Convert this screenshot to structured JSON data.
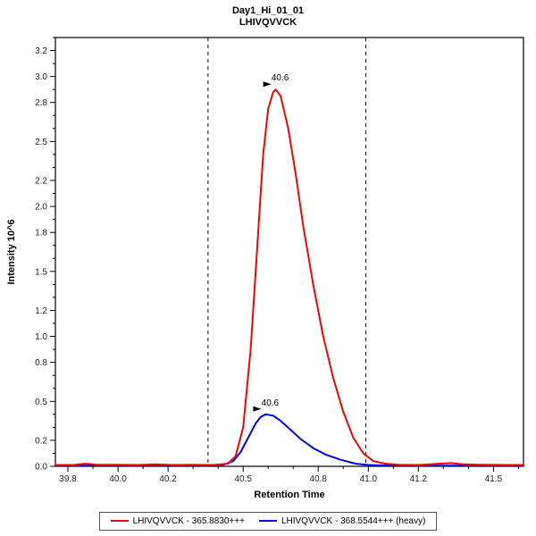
{
  "title": "Day1_Hi_01_01",
  "subtitle": "LHIVQVVCK",
  "chart_data": {
    "type": "line",
    "title": "Day1_Hi_01_01",
    "subtitle": "LHIVQVVCK",
    "xlabel": "Retention Time",
    "ylabel": "Intensity 10^6",
    "xlim": [
      39.75,
      41.62
    ],
    "ylim": [
      0,
      3.3
    ],
    "x_ticks": [
      39.8,
      40.0,
      40.2,
      40.5,
      40.8,
      41.0,
      41.2,
      41.5
    ],
    "y_ticks": [
      0.0,
      0.2,
      0.5,
      0.8,
      1.0,
      1.2,
      1.5,
      1.8,
      2.0,
      2.2,
      2.5,
      2.8,
      3.0,
      3.2
    ],
    "peak_boundaries": [
      40.36,
      40.99
    ],
    "legend_position": "bottom",
    "grid": false,
    "series": [
      {
        "name": "LHIVQVVCK - 365.8830+++",
        "color": "#ff0000",
        "peak_label": "40.6",
        "peak_x": 40.63,
        "peak_y": 2.9,
        "points": [
          [
            39.75,
            0.01
          ],
          [
            39.82,
            0.01
          ],
          [
            39.87,
            0.02
          ],
          [
            39.92,
            0.012
          ],
          [
            40.0,
            0.012
          ],
          [
            40.08,
            0.01
          ],
          [
            40.15,
            0.015
          ],
          [
            40.22,
            0.01
          ],
          [
            40.3,
            0.012
          ],
          [
            40.38,
            0.01
          ],
          [
            40.44,
            0.02
          ],
          [
            40.47,
            0.08
          ],
          [
            40.5,
            0.3
          ],
          [
            40.53,
            0.9
          ],
          [
            40.56,
            1.8
          ],
          [
            40.58,
            2.4
          ],
          [
            40.6,
            2.75
          ],
          [
            40.62,
            2.88
          ],
          [
            40.63,
            2.9
          ],
          [
            40.65,
            2.85
          ],
          [
            40.68,
            2.6
          ],
          [
            40.71,
            2.25
          ],
          [
            40.74,
            1.85
          ],
          [
            40.78,
            1.4
          ],
          [
            40.82,
            1.0
          ],
          [
            40.86,
            0.68
          ],
          [
            40.9,
            0.42
          ],
          [
            40.94,
            0.22
          ],
          [
            40.98,
            0.1
          ],
          [
            41.02,
            0.04
          ],
          [
            41.07,
            0.02
          ],
          [
            41.12,
            0.012
          ],
          [
            41.2,
            0.01
          ],
          [
            41.28,
            0.02
          ],
          [
            41.33,
            0.025
          ],
          [
            41.38,
            0.015
          ],
          [
            41.45,
            0.012
          ],
          [
            41.55,
            0.01
          ],
          [
            41.62,
            0.01
          ]
        ]
      },
      {
        "name": "LHIVQVVCK - 368.5544+++ (heavy)",
        "color": "#0000ff",
        "peak_label": "40.6",
        "peak_x": 40.59,
        "peak_y": 0.4,
        "points": [
          [
            39.75,
            0.005
          ],
          [
            40.0,
            0.005
          ],
          [
            40.2,
            0.005
          ],
          [
            40.35,
            0.005
          ],
          [
            40.42,
            0.01
          ],
          [
            40.46,
            0.04
          ],
          [
            40.49,
            0.11
          ],
          [
            40.52,
            0.22
          ],
          [
            40.55,
            0.33
          ],
          [
            40.57,
            0.38
          ],
          [
            40.59,
            0.4
          ],
          [
            40.62,
            0.39
          ],
          [
            40.65,
            0.35
          ],
          [
            40.69,
            0.28
          ],
          [
            40.73,
            0.21
          ],
          [
            40.78,
            0.14
          ],
          [
            40.83,
            0.09
          ],
          [
            40.89,
            0.05
          ],
          [
            40.95,
            0.02
          ],
          [
            41.0,
            0.01
          ],
          [
            41.08,
            0.006
          ],
          [
            41.2,
            0.005
          ],
          [
            41.62,
            0.005
          ]
        ]
      }
    ]
  },
  "legend": {
    "items": [
      {
        "label": "LHIVQVVCK - 365.8830+++",
        "color": "#ff0000"
      },
      {
        "label": "LHIVQVVCK - 368.5544+++ (heavy)",
        "color": "#0000ff"
      }
    ]
  }
}
